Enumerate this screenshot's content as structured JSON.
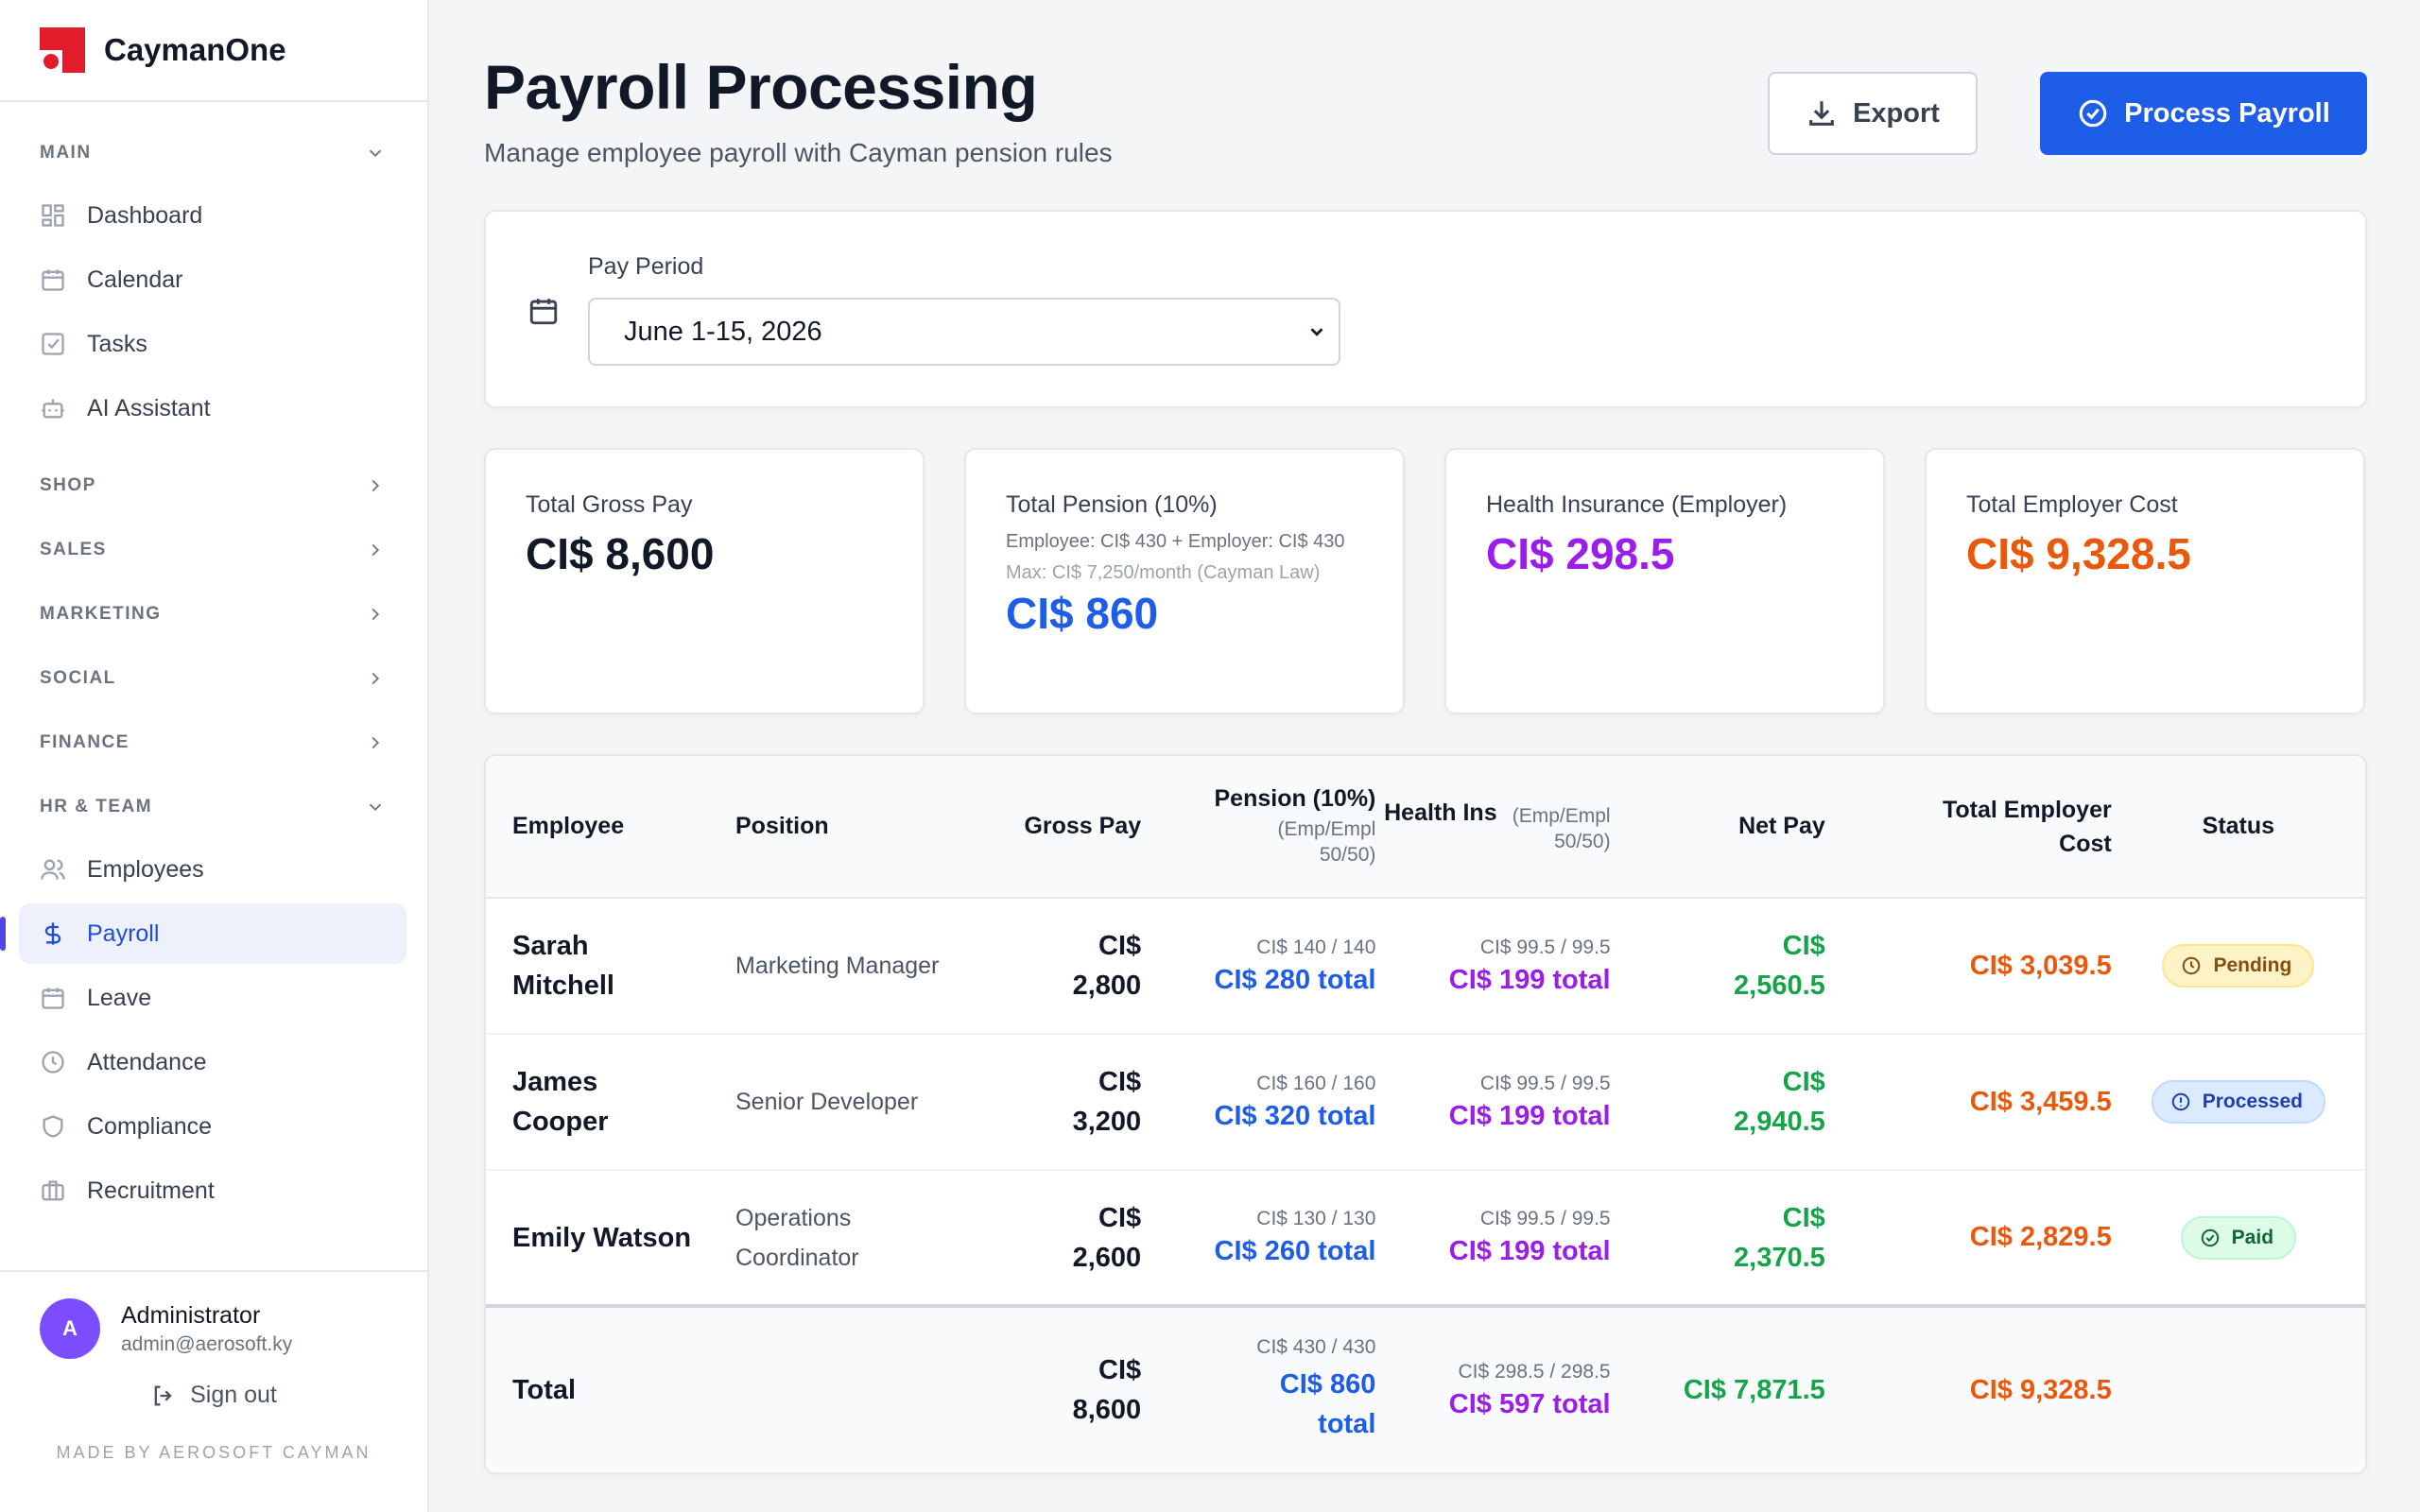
{
  "brand": {
    "name": "CaymanOne"
  },
  "sidebar": {
    "sections": {
      "main": "MAIN",
      "shop": "SHOP",
      "sales": "SALES",
      "marketing": "MARKETING",
      "social": "SOCIAL",
      "finance": "FINANCE",
      "hr": "HR & TEAM"
    },
    "main_items": [
      "Dashboard",
      "Calendar",
      "Tasks",
      "AI Assistant"
    ],
    "hr_items": [
      "Employees",
      "Payroll",
      "Leave",
      "Attendance",
      "Compliance",
      "Recruitment"
    ],
    "active_item": "Payroll"
  },
  "user": {
    "initial": "A",
    "name": "Administrator",
    "email": "admin@aerosoft.ky",
    "sign_out": "Sign out",
    "made_by": "MADE BY AEROSOFT CAYMAN"
  },
  "header": {
    "title": "Payroll Processing",
    "subtitle": "Manage employee payroll with Cayman pension rules",
    "export_label": "Export",
    "process_label": "Process Payroll"
  },
  "period": {
    "label": "Pay Period",
    "value": "June 1-15, 2026"
  },
  "stats": {
    "gross": {
      "label": "Total Gross Pay",
      "value": "CI$ 8,600"
    },
    "pension": {
      "label": "Total Pension (10%)",
      "note": "Employee: CI$ 430 + Employer: CI$ 430",
      "note2": "Max: CI$ 7,250/month (Cayman Law)",
      "value": "CI$ 860"
    },
    "health": {
      "label": "Health Insurance (Employer)",
      "value": "CI$ 298.5"
    },
    "employer": {
      "label": "Total Employer Cost",
      "value": "CI$ 9,328.5"
    }
  },
  "table": {
    "headers": {
      "employee": "Employee",
      "position": "Position",
      "gross": "Gross Pay",
      "pension": "Pension (10%)",
      "pension_sub": "(Emp/Empl 50/50)",
      "health": "Health Ins",
      "health_sub": "(Emp/Empl 50/50)",
      "net": "Net Pay",
      "employer": "Total Employer Cost",
      "status": "Status"
    },
    "rows": [
      {
        "employee": "Sarah Mitchell",
        "position": "Marketing Manager",
        "gross": "CI$ 2,800",
        "pension_split": "CI$ 140 / 140",
        "pension_total": "CI$ 280 total",
        "health_split": "CI$ 99.5 / 99.5",
        "health_total": "CI$ 199 total",
        "net": "CI$ 2,560.5",
        "employer_cost": "CI$ 3,039.5",
        "status": "Pending"
      },
      {
        "employee": "James Cooper",
        "position": "Senior Developer",
        "gross": "CI$ 3,200",
        "pension_split": "CI$ 160 / 160",
        "pension_total": "CI$ 320 total",
        "health_split": "CI$ 99.5 / 99.5",
        "health_total": "CI$ 199 total",
        "net": "CI$ 2,940.5",
        "employer_cost": "CI$ 3,459.5",
        "status": "Processed"
      },
      {
        "employee": "Emily Watson",
        "position": "Operations Coordinator",
        "gross": "CI$ 2,600",
        "pension_split": "CI$ 130 / 130",
        "pension_total": "CI$ 260 total",
        "health_split": "CI$ 99.5 / 99.5",
        "health_total": "CI$ 199 total",
        "net": "CI$ 2,370.5",
        "employer_cost": "CI$ 2,829.5",
        "status": "Paid"
      }
    ],
    "total": {
      "label": "Total",
      "gross": "CI$ 8,600",
      "pension_split": "CI$ 430 / 430",
      "pension_total": "CI$ 860 total",
      "health_split": "CI$ 298.5 / 298.5",
      "health_total": "CI$ 597 total",
      "net": "CI$ 7,871.5",
      "employer_cost": "CI$ 9,328.5"
    }
  },
  "colors": {
    "primary": "#1d5de8",
    "pension": "#1d5de8",
    "health": "#9b1dea",
    "net": "#16a34a",
    "employer_cost": "#ea580c",
    "brand": "#e11d2a"
  }
}
